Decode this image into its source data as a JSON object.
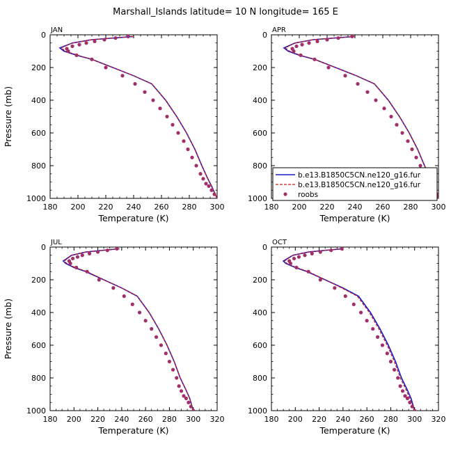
{
  "title": "Marshall_Islands  latitude= 10 N longitude= 165 E",
  "xlabel": "Temperature (K)",
  "ylabel": "Pressure (mb)",
  "colors": {
    "model1": "#1a1ac8",
    "model2": "#c81a1a",
    "obs": "#a0306a"
  },
  "legend": {
    "entries": [
      "b.e13.B1850C5CN.ne120_g16.fur",
      "b.e13.B1850C5CN.ne120_g16.fur",
      "roobs"
    ]
  },
  "chart_data": [
    {
      "type": "line",
      "panel": "JAN",
      "xlim": [
        180,
        300
      ],
      "xticks": [
        180,
        200,
        220,
        240,
        260,
        280,
        300
      ],
      "ylim": [
        1000,
        0
      ],
      "yticks": [
        0,
        200,
        400,
        600,
        800,
        1000
      ],
      "legend": "none",
      "series": [
        {
          "name": "b.e13.B1850C5CN.ne120_g16.fur",
          "style": "solid",
          "x": [
            240,
            225,
            210,
            196,
            187,
            190,
            199,
            210,
            225,
            240,
            253,
            263,
            271,
            278,
            284,
            289,
            293,
            296,
            300
          ],
          "y": [
            10,
            20,
            30,
            50,
            80,
            100,
            125,
            150,
            200,
            250,
            300,
            400,
            500,
            600,
            700,
            800,
            875,
            925,
            1000
          ]
        },
        {
          "name": "b.e13.B1850C5CN.ne120_g16.fur",
          "style": "dashed",
          "x": [
            240,
            225,
            210,
            196,
            188,
            191,
            200,
            210,
            225,
            240,
            253,
            263,
            271,
            278,
            284,
            289,
            293,
            296,
            300
          ],
          "y": [
            10,
            20,
            30,
            50,
            80,
            100,
            125,
            150,
            200,
            250,
            300,
            400,
            500,
            600,
            700,
            800,
            875,
            925,
            1000
          ]
        },
        {
          "name": "roobs",
          "style": "dots",
          "x": [
            236,
            227,
            219,
            212,
            206,
            201,
            196,
            192,
            193,
            199,
            210,
            220,
            232,
            241,
            248,
            254,
            259,
            264,
            268,
            272,
            276,
            279,
            282,
            285,
            288,
            290,
            292,
            294,
            296,
            298,
            300
          ],
          "y": [
            10,
            20,
            30,
            40,
            50,
            60,
            70,
            85,
            100,
            125,
            150,
            200,
            250,
            300,
            350,
            400,
            450,
            500,
            550,
            600,
            650,
            700,
            750,
            800,
            850,
            880,
            910,
            925,
            950,
            975,
            1000
          ]
        }
      ]
    },
    {
      "type": "line",
      "panel": "APR",
      "xlim": [
        180,
        300
      ],
      "xticks": [
        180,
        200,
        220,
        240,
        260,
        280,
        300
      ],
      "ylim": [
        1000,
        0
      ],
      "yticks": [
        0,
        200,
        400,
        600,
        800,
        1000
      ],
      "legend": "bottom-right",
      "series": [
        {
          "name": "b.e13.B1850C5CN.ne120_g16.fur",
          "style": "solid",
          "x": [
            240,
            225,
            210,
            197,
            189,
            192,
            200,
            211,
            226,
            241,
            254,
            264,
            272,
            279,
            285,
            290,
            294,
            297,
            300
          ],
          "y": [
            10,
            20,
            30,
            50,
            80,
            100,
            125,
            150,
            200,
            250,
            300,
            400,
            500,
            600,
            700,
            800,
            875,
            925,
            1000
          ]
        },
        {
          "name": "b.e13.B1850C5CN.ne120_g16.fur",
          "style": "dashed",
          "x": [
            240,
            225,
            210,
            197,
            190,
            193,
            201,
            211,
            226,
            241,
            254,
            264,
            272,
            279,
            285,
            290,
            294,
            297,
            300
          ],
          "y": [
            10,
            20,
            30,
            50,
            80,
            100,
            125,
            150,
            200,
            250,
            300,
            400,
            500,
            600,
            700,
            800,
            875,
            925,
            1000
          ]
        },
        {
          "name": "roobs",
          "style": "dots",
          "x": [
            238,
            228,
            220,
            213,
            207,
            202,
            198,
            195,
            196,
            201,
            211,
            221,
            233,
            242,
            249,
            255,
            261,
            266,
            270,
            274,
            278,
            281,
            284,
            287,
            289,
            291,
            293,
            295,
            297,
            299,
            300
          ],
          "y": [
            10,
            20,
            30,
            40,
            50,
            60,
            70,
            85,
            100,
            125,
            150,
            200,
            250,
            300,
            350,
            400,
            450,
            500,
            550,
            600,
            650,
            700,
            750,
            800,
            850,
            880,
            910,
            925,
            950,
            975,
            1000
          ]
        }
      ]
    },
    {
      "type": "line",
      "panel": "JUL",
      "xlim": [
        180,
        320
      ],
      "xticks": [
        180,
        200,
        220,
        240,
        260,
        280,
        300,
        320
      ],
      "ylim": [
        1000,
        0
      ],
      "yticks": [
        0,
        200,
        400,
        600,
        800,
        1000
      ],
      "legend": "none",
      "series": [
        {
          "name": "b.e13.B1850C5CN.ne120_g16.fur",
          "style": "solid",
          "x": [
            238,
            224,
            210,
            198,
            191,
            193,
            200,
            210,
            225,
            240,
            253,
            263,
            271,
            278,
            284,
            289,
            294,
            297,
            300
          ],
          "y": [
            10,
            20,
            30,
            50,
            85,
            100,
            125,
            150,
            200,
            250,
            300,
            400,
            500,
            600,
            700,
            800,
            875,
            925,
            1000
          ]
        },
        {
          "name": "b.e13.B1850C5CN.ne120_g16.fur",
          "style": "dashed",
          "x": [
            238,
            224,
            210,
            198,
            192,
            194,
            201,
            211,
            225,
            240,
            253,
            263,
            271,
            278,
            284,
            289,
            294,
            297,
            300
          ],
          "y": [
            10,
            20,
            30,
            50,
            85,
            100,
            125,
            150,
            200,
            250,
            300,
            400,
            500,
            600,
            700,
            800,
            875,
            925,
            1000
          ]
        },
        {
          "name": "roobs",
          "style": "dots",
          "x": [
            236,
            228,
            220,
            213,
            207,
            203,
            199,
            196,
            197,
            202,
            211,
            221,
            233,
            242,
            249,
            255,
            260,
            265,
            269,
            273,
            277,
            280,
            283,
            286,
            288,
            290,
            292,
            294,
            296,
            298,
            300
          ],
          "y": [
            10,
            20,
            30,
            40,
            50,
            60,
            70,
            85,
            100,
            125,
            150,
            200,
            250,
            300,
            350,
            400,
            450,
            500,
            550,
            600,
            650,
            700,
            750,
            800,
            850,
            880,
            910,
            925,
            950,
            975,
            1000
          ]
        }
      ]
    },
    {
      "type": "line",
      "panel": "OCT",
      "xlim": [
        180,
        320
      ],
      "xticks": [
        180,
        200,
        220,
        240,
        260,
        280,
        300,
        320
      ],
      "ylim": [
        1000,
        0
      ],
      "yticks": [
        0,
        200,
        400,
        600,
        800,
        1000
      ],
      "legend": "none",
      "series": [
        {
          "name": "b.e13.B1850C5CN.ne120_g16.fur",
          "style": "solid",
          "x": [
            240,
            225,
            211,
            198,
            190,
            192,
            200,
            210,
            225,
            240,
            253,
            263,
            271,
            278,
            284,
            289,
            294,
            297,
            300
          ],
          "y": [
            10,
            20,
            30,
            50,
            85,
            100,
            125,
            150,
            200,
            250,
            300,
            400,
            500,
            600,
            700,
            800,
            875,
            925,
            1000
          ]
        },
        {
          "name": "b.e13.B1850C5CN.ne120_g16.fur",
          "style": "dashed",
          "x": [
            240,
            225,
            211,
            198,
            191,
            193,
            201,
            211,
            225,
            239,
            252,
            262,
            270,
            277,
            283,
            288,
            293,
            296,
            300
          ],
          "y": [
            10,
            20,
            30,
            50,
            85,
            100,
            125,
            150,
            200,
            250,
            300,
            400,
            500,
            600,
            700,
            800,
            875,
            925,
            1000
          ]
        },
        {
          "name": "roobs",
          "style": "dots",
          "x": [
            239,
            230,
            221,
            214,
            208,
            203,
            199,
            195,
            196,
            201,
            211,
            221,
            233,
            242,
            249,
            255,
            260,
            265,
            269,
            273,
            277,
            280,
            283,
            286,
            288,
            290,
            292,
            294,
            296,
            298,
            300
          ],
          "y": [
            10,
            20,
            30,
            40,
            50,
            60,
            70,
            85,
            100,
            125,
            150,
            200,
            250,
            300,
            350,
            400,
            450,
            500,
            550,
            600,
            650,
            700,
            750,
            800,
            850,
            880,
            910,
            925,
            950,
            975,
            1000
          ]
        }
      ]
    }
  ]
}
